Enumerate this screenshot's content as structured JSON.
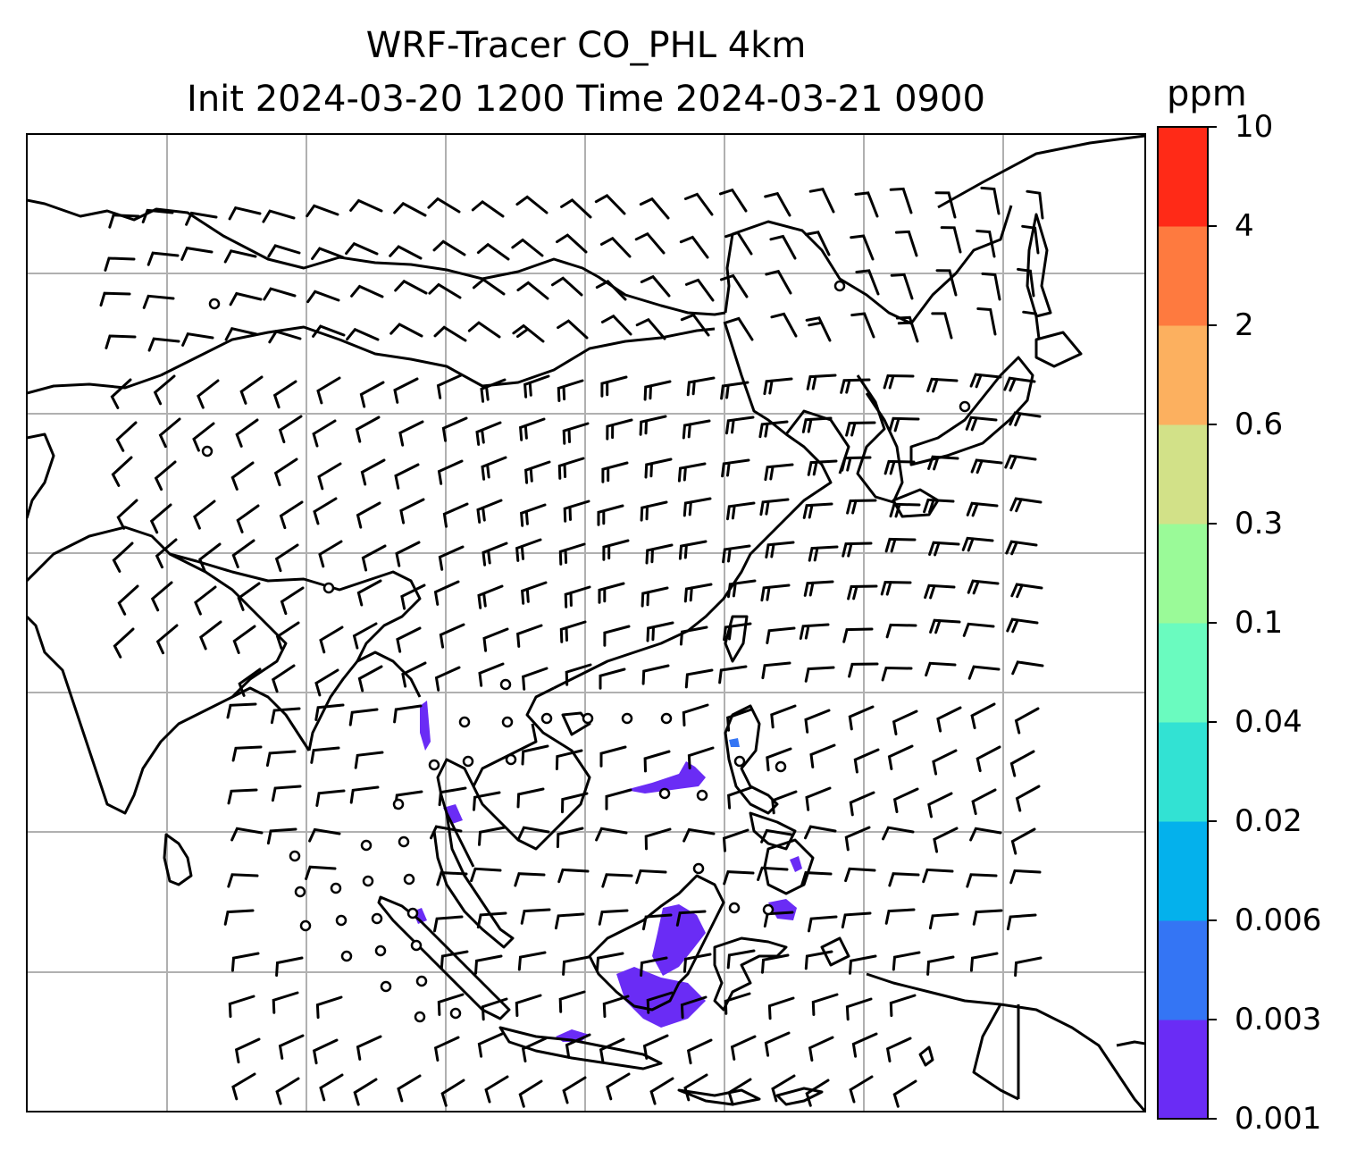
{
  "title": {
    "line1": "WRF-Tracer CO_PHL 4km",
    "line2": "Init 2024-03-20 1200 Time 2024-03-21 0900"
  },
  "colorbar": {
    "units": "ppm",
    "levels": [
      "0.001",
      "0.003",
      "0.006",
      "0.02",
      "0.04",
      "0.1",
      "0.3",
      "0.6",
      "2",
      "4",
      "10"
    ],
    "colors": [
      "#6a2cf5",
      "#3475f4",
      "#04b1ec",
      "#32e2d3",
      "#6afbbf",
      "#9afa98",
      "#d2e188",
      "#fcb05f",
      "#fe7a3f",
      "#ff2a17"
    ]
  },
  "map": {
    "gridline_color": "#b0b0b0",
    "coastline_color": "#000000",
    "tracer_color": "#6a2cf5",
    "wind_barbs": "black"
  }
}
